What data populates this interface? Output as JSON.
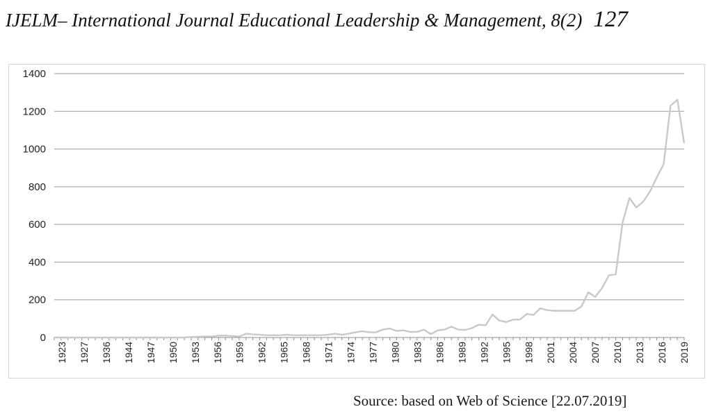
{
  "header": {
    "journal_title": "IJELM– International Journal Educational Leadership & Management, 8(2)",
    "page_number": "127"
  },
  "source_note": "Source: based on Web of Science [22.07.2019]",
  "chart_data": {
    "type": "line",
    "title": "",
    "xlabel": "",
    "ylabel": "",
    "ylim": [
      0,
      1400
    ],
    "yticks": [
      0,
      200,
      400,
      600,
      800,
      1000,
      1200,
      1400
    ],
    "grid": true,
    "line_color": "#c8c8c8",
    "x_tick_labels": [
      "1923",
      "1927",
      "1936",
      "1944",
      "1947",
      "1950",
      "1953",
      "1956",
      "1959",
      "1962",
      "1965",
      "1968",
      "1971",
      "1974",
      "1977",
      "1980",
      "1983",
      "1986",
      "1989",
      "1992",
      "1995",
      "1998",
      "2001",
      "2004",
      "2007",
      "2010",
      "2013",
      "2016",
      "2019"
    ],
    "series": [
      {
        "values": [
          0,
          0,
          0,
          0,
          0,
          0,
          0,
          0,
          0,
          0,
          0,
          0,
          0,
          0,
          0,
          0,
          0,
          0,
          0,
          0,
          3,
          4,
          5,
          5,
          10,
          10,
          8,
          5,
          20,
          17,
          15,
          12,
          12,
          12,
          15,
          12,
          12,
          12,
          12,
          12,
          15,
          20,
          15,
          20,
          28,
          33,
          28,
          28,
          42,
          48,
          35,
          38,
          30,
          30,
          42,
          18,
          38,
          42,
          58,
          42,
          40,
          50,
          68,
          65,
          122,
          90,
          82,
          95,
          95,
          125,
          120,
          155,
          145,
          142,
          142,
          142,
          142,
          165,
          240,
          215,
          262,
          330,
          335,
          610,
          740,
          690,
          720,
          775,
          850,
          920,
          1230,
          1262,
          1030
        ]
      }
    ]
  }
}
